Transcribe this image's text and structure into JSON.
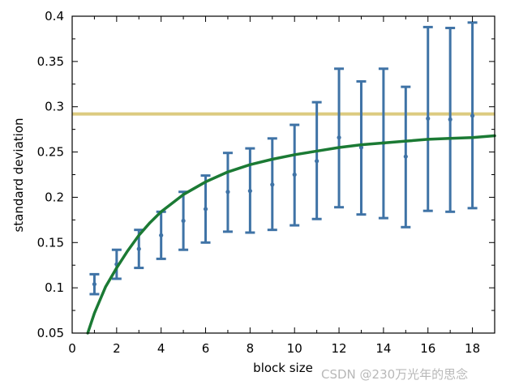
{
  "chart_data": {
    "type": "scatter",
    "xlabel": "block size",
    "ylabel": "standard deviation",
    "xlim": [
      0,
      19
    ],
    "ylim": [
      0.05,
      0.4
    ],
    "x_ticks": [
      0,
      2,
      4,
      6,
      8,
      10,
      12,
      14,
      16,
      18
    ],
    "y_ticks": [
      0.05,
      0.1,
      0.15,
      0.2,
      0.25,
      0.3,
      0.35,
      0.4
    ],
    "y_tick_labels": [
      "0.05",
      "0.1",
      "0.15",
      "0.2",
      "0.25",
      "0.3",
      "0.35",
      "0.4"
    ],
    "grid": false,
    "series": [
      {
        "kind": "errorbar",
        "color": "#3f73a6",
        "points": [
          {
            "x": 1,
            "y": 0.104,
            "low": 0.093,
            "high": 0.115
          },
          {
            "x": 2,
            "y": 0.126,
            "low": 0.11,
            "high": 0.142
          },
          {
            "x": 3,
            "y": 0.143,
            "low": 0.122,
            "high": 0.164
          },
          {
            "x": 4,
            "y": 0.158,
            "low": 0.132,
            "high": 0.184
          },
          {
            "x": 5,
            "y": 0.174,
            "low": 0.142,
            "high": 0.206
          },
          {
            "x": 6,
            "y": 0.187,
            "low": 0.15,
            "high": 0.224
          },
          {
            "x": 7,
            "y": 0.206,
            "low": 0.162,
            "high": 0.249
          },
          {
            "x": 8,
            "y": 0.207,
            "low": 0.161,
            "high": 0.254
          },
          {
            "x": 9,
            "y": 0.214,
            "low": 0.164,
            "high": 0.265
          },
          {
            "x": 10,
            "y": 0.225,
            "low": 0.169,
            "high": 0.28
          },
          {
            "x": 11,
            "y": 0.24,
            "low": 0.176,
            "high": 0.305
          },
          {
            "x": 12,
            "y": 0.266,
            "low": 0.189,
            "high": 0.342
          },
          {
            "x": 13,
            "y": 0.255,
            "low": 0.181,
            "high": 0.328
          },
          {
            "x": 14,
            "y": 0.26,
            "low": 0.177,
            "high": 0.342
          },
          {
            "x": 15,
            "y": 0.245,
            "low": 0.167,
            "high": 0.322
          },
          {
            "x": 16,
            "y": 0.287,
            "low": 0.185,
            "high": 0.388
          },
          {
            "x": 17,
            "y": 0.286,
            "low": 0.184,
            "high": 0.387
          },
          {
            "x": 18,
            "y": 0.29,
            "low": 0.188,
            "high": 0.393
          }
        ]
      },
      {
        "kind": "curve",
        "color": "#1b7a34",
        "x": [
          0.7,
          1,
          1.5,
          2,
          2.5,
          3,
          3.5,
          4,
          5,
          6,
          7,
          8,
          9,
          10,
          11,
          12,
          13,
          14,
          15,
          16,
          17,
          18,
          19
        ],
        "y": [
          0.05,
          0.072,
          0.101,
          0.122,
          0.141,
          0.158,
          0.172,
          0.184,
          0.203,
          0.217,
          0.228,
          0.236,
          0.242,
          0.247,
          0.251,
          0.255,
          0.258,
          0.26,
          0.262,
          0.264,
          0.265,
          0.266,
          0.268
        ]
      },
      {
        "kind": "hline",
        "color": "#dccb80",
        "y": 0.292
      }
    ]
  },
  "watermark": "CSDN @230万光年的思念"
}
